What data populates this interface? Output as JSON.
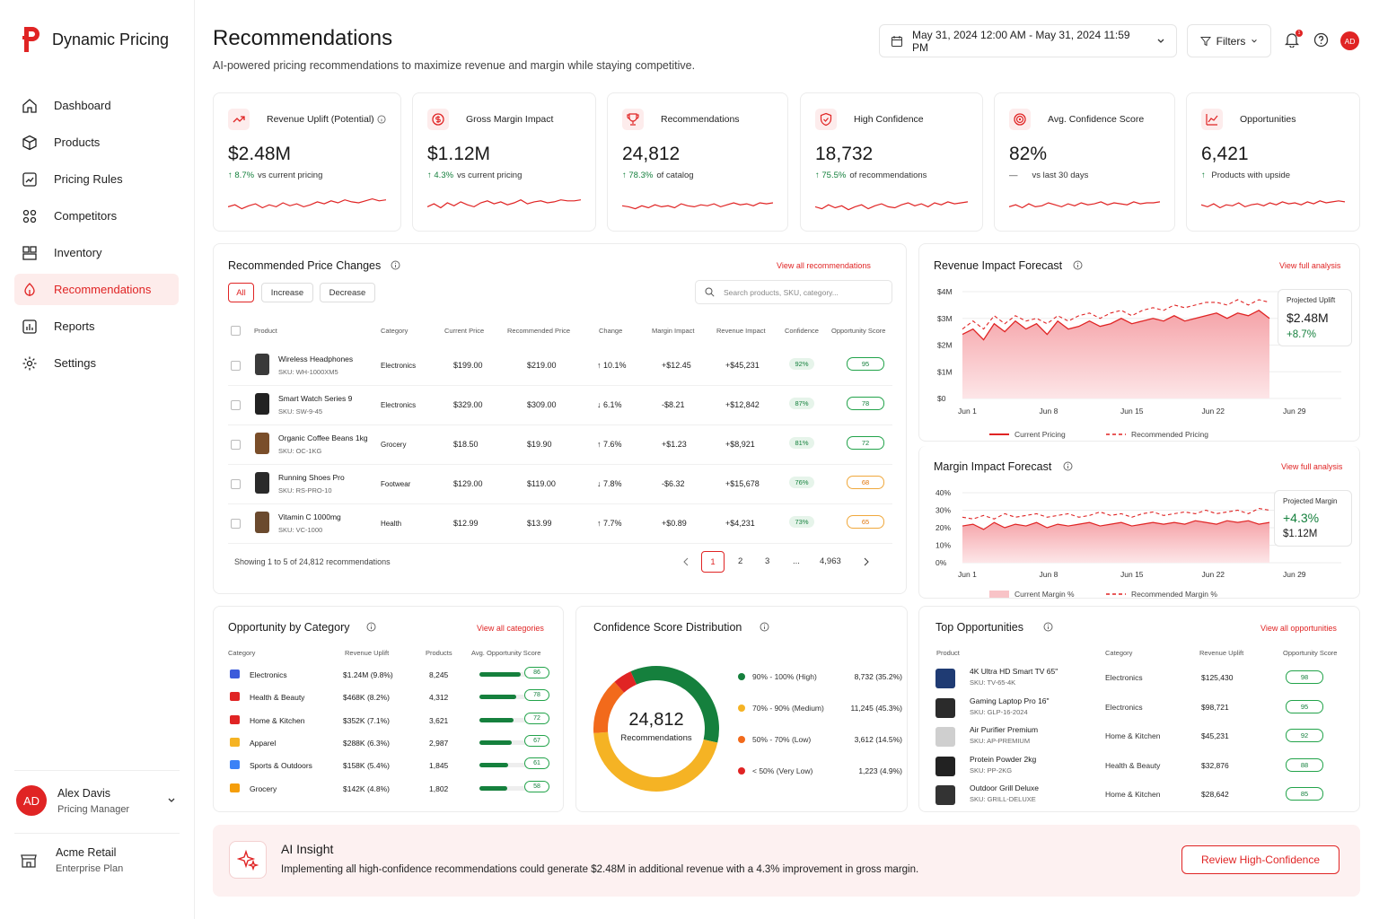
{
  "app": {
    "name": "Dynamic Pricing",
    "accent": "#e02424"
  },
  "nav": [
    {
      "label": "Dashboard",
      "icon": "home-icon"
    },
    {
      "label": "Products",
      "icon": "box-icon"
    },
    {
      "label": "Pricing Rules",
      "icon": "rules-icon"
    },
    {
      "label": "Competitors",
      "icon": "competitors-icon"
    },
    {
      "label": "Inventory",
      "icon": "inventory-icon"
    },
    {
      "label": "Recommendations",
      "icon": "recommendations-icon",
      "active": true
    },
    {
      "label": "Reports",
      "icon": "reports-icon"
    },
    {
      "label": "Settings",
      "icon": "gear-icon"
    }
  ],
  "user": {
    "initials": "AD",
    "name": "Alex Davis",
    "role": "Pricing Manager"
  },
  "org": {
    "name": "Acme Retail",
    "plan": "Enterprise Plan"
  },
  "header": {
    "title": "Recommendations",
    "subtitle": "AI-powered pricing recommendations to maximize revenue and margin while staying competitive.",
    "date_range": "May 31, 2024 12:00 AM - May 31, 2024 11:59 PM",
    "filters": "Filters",
    "notif_count": "1",
    "avatar": "AD"
  },
  "kpis": [
    {
      "title": "Revenue Uplift (Potential)",
      "value": "$2.48M",
      "delta": "8.7%",
      "note": "vs current pricing",
      "trend": "up"
    },
    {
      "title": "Gross Margin Impact",
      "value": "$1.12M",
      "delta": "4.3%",
      "note": "vs current pricing",
      "trend": "up"
    },
    {
      "title": "Recommendations",
      "value": "24,812",
      "delta": "78.3%",
      "note": "of catalog",
      "trend": "up"
    },
    {
      "title": "High Confidence",
      "value": "18,732",
      "delta": "75.5%",
      "note": "of recommendations",
      "trend": "up"
    },
    {
      "title": "Avg. Confidence Score",
      "value": "82%",
      "delta": "—",
      "note": "vs last 30 days",
      "trend": "flat"
    },
    {
      "title": "Opportunities",
      "value": "6,421",
      "delta": "",
      "note": "Products with upside",
      "trend": "up"
    }
  ],
  "price_changes": {
    "title": "Recommended Price Changes",
    "link": "View all recommendations",
    "filters": [
      "All",
      "Increase",
      "Decrease"
    ],
    "search_placeholder": "Search products, SKU, category...",
    "columns": [
      "Product",
      "Category",
      "Current Price",
      "Recommended Price",
      "Change",
      "Margin Impact",
      "Revenue Impact",
      "Confidence",
      "Opportunity Score"
    ],
    "rows": [
      {
        "name": "Wireless Headphones",
        "sku": "SKU: WH-1000XM5",
        "category": "Electronics",
        "current": "$199.00",
        "recommended": "$219.00",
        "change": "10.1%",
        "dir": "up",
        "margin": "+$12.45",
        "revenue": "+$45,231",
        "confidence": "92%",
        "score": "95"
      },
      {
        "name": "Smart Watch Series 9",
        "sku": "SKU: SW-9-45",
        "category": "Electronics",
        "current": "$329.00",
        "recommended": "$309.00",
        "change": "6.1%",
        "dir": "down",
        "margin": "-$8.21",
        "revenue": "+$12,842",
        "confidence": "87%",
        "score": "78"
      },
      {
        "name": "Organic Coffee Beans 1kg",
        "sku": "SKU: OC-1KG",
        "category": "Grocery",
        "current": "$18.50",
        "recommended": "$19.90",
        "change": "7.6%",
        "dir": "up",
        "margin": "+$1.23",
        "revenue": "+$8,921",
        "confidence": "81%",
        "score": "72"
      },
      {
        "name": "Running Shoes Pro",
        "sku": "SKU: RS-PRO-10",
        "category": "Footwear",
        "current": "$129.00",
        "recommended": "$119.00",
        "change": "7.8%",
        "dir": "down",
        "margin": "-$6.32",
        "revenue": "+$15,678",
        "confidence": "76%",
        "score": "68"
      },
      {
        "name": "Vitamin C 1000mg",
        "sku": "SKU: VC-1000",
        "category": "Health",
        "current": "$12.99",
        "recommended": "$13.99",
        "change": "7.7%",
        "dir": "up",
        "margin": "+$0.89",
        "revenue": "+$4,231",
        "confidence": "73%",
        "score": "65"
      }
    ],
    "showing": "Showing 1 to 5 of 24,812 recommendations",
    "pages": [
      "1",
      "2",
      "3",
      "...",
      "4,963"
    ]
  },
  "revenue_forecast": {
    "title": "Revenue Impact Forecast",
    "link": "View full analysis",
    "yticks": [
      "$4M",
      "$3M",
      "$2M",
      "$1M",
      "$0"
    ],
    "xticks": [
      "Jun 1",
      "Jun 8",
      "Jun 15",
      "Jun 22",
      "Jun 29"
    ],
    "legend": [
      "Current Pricing",
      "Recommended Pricing"
    ],
    "box_label": "Projected Uplift",
    "box_value": "$2.48M",
    "box_delta": "+8.7%"
  },
  "margin_forecast": {
    "title": "Margin Impact Forecast",
    "link": "View full analysis",
    "yticks": [
      "40%",
      "30%",
      "20%",
      "10%",
      "0%"
    ],
    "xticks": [
      "Jun 1",
      "Jun 8",
      "Jun 15",
      "Jun 22",
      "Jun 29"
    ],
    "legend": [
      "Current Margin %",
      "Recommended Margin %"
    ],
    "box_label": "Projected Margin",
    "box_delta": "+4.3%",
    "box_value": "$1.12M"
  },
  "categories": {
    "title": "Opportunity by Category",
    "link": "View all categories",
    "columns": [
      "Category",
      "Revenue Uplift",
      "Products",
      "Avg. Opportunity Score"
    ],
    "rows": [
      {
        "name": "Electronics",
        "uplift": "$1.24M (9.8%)",
        "products": "8,245",
        "score": "86",
        "pct": 0.86
      },
      {
        "name": "Health & Beauty",
        "uplift": "$468K (8.2%)",
        "products": "4,312",
        "score": "78",
        "pct": 0.78
      },
      {
        "name": "Home & Kitchen",
        "uplift": "$352K (7.1%)",
        "products": "3,621",
        "score": "72",
        "pct": 0.72
      },
      {
        "name": "Apparel",
        "uplift": "$288K (6.3%)",
        "products": "2,987",
        "score": "67",
        "pct": 0.67
      },
      {
        "name": "Sports & Outdoors",
        "uplift": "$158K (5.4%)",
        "products": "1,845",
        "score": "61",
        "pct": 0.61
      },
      {
        "name": "Grocery",
        "uplift": "$142K (4.8%)",
        "products": "1,802",
        "score": "58",
        "pct": 0.58
      }
    ]
  },
  "confidence": {
    "title": "Confidence Score Distribution",
    "total": "24,812",
    "total_label": "Recommendations",
    "buckets": [
      {
        "label": "90% - 100% (High)",
        "value": "8,732 (35.2%)",
        "share": 35.2,
        "color": "#15803d"
      },
      {
        "label": "70% - 90% (Medium)",
        "value": "11,245 (45.3%)",
        "share": 45.3,
        "color": "#f5b324"
      },
      {
        "label": "50% - 70% (Low)",
        "value": "3,612 (14.5%)",
        "share": 14.5,
        "color": "#f26a1b"
      },
      {
        "label": "< 50% (Very Low)",
        "value": "1,223 (4.9%)",
        "share": 4.9,
        "color": "#e02424"
      }
    ]
  },
  "top_opps": {
    "title": "Top Opportunities",
    "link": "View all opportunities",
    "columns": [
      "Product",
      "Category",
      "Revenue Uplift",
      "Opportunity Score"
    ],
    "rows": [
      {
        "name": "4K Ultra HD Smart TV 65\"",
        "sku": "SKU: TV-65-4K",
        "category": "Electronics",
        "uplift": "$125,430",
        "score": "98"
      },
      {
        "name": "Gaming Laptop Pro 16\"",
        "sku": "SKU: GLP-16-2024",
        "category": "Electronics",
        "uplift": "$98,721",
        "score": "95"
      },
      {
        "name": "Air Purifier Premium",
        "sku": "SKU: AP-PREMIUM",
        "category": "Home & Kitchen",
        "uplift": "$45,231",
        "score": "92"
      },
      {
        "name": "Protein Powder 2kg",
        "sku": "SKU: PP-2KG",
        "category": "Health & Beauty",
        "uplift": "$32,876",
        "score": "88"
      },
      {
        "name": "Outdoor Grill Deluxe",
        "sku": "SKU: GRILL-DELUXE",
        "category": "Home & Kitchen",
        "uplift": "$28,642",
        "score": "85"
      }
    ]
  },
  "insight": {
    "title": "AI Insight",
    "text": "Implementing all high-confidence recommendations could generate $2.48M in additional revenue with a 4.3% improvement in gross margin.",
    "button": "Review High-Confidence"
  }
}
